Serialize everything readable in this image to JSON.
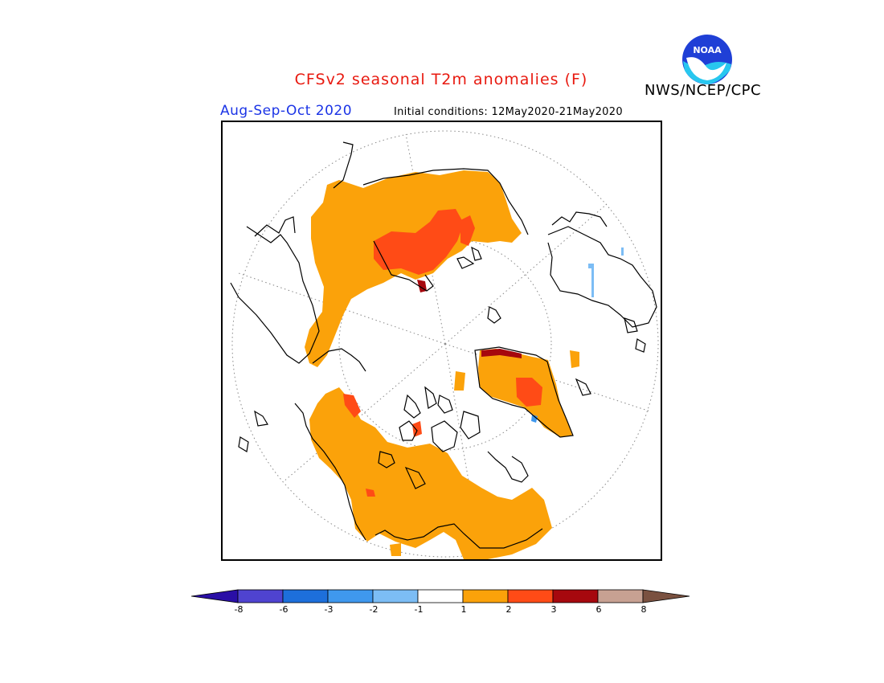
{
  "header": {
    "title": "CFSv2 seasonal T2m anomalies (F)",
    "organization": "NWS/NCEP/CPC",
    "logo_text": "NOAA",
    "season": "Aug-Sep-Oct 2020",
    "initial_conditions": "Initial conditions: 12May2020-21May2020"
  },
  "colorbar": {
    "ticks": [
      "-8",
      "-6",
      "-3",
      "-2",
      "-1",
      "1",
      "2",
      "3",
      "6",
      "8"
    ],
    "colors": [
      "#2a0fa6",
      "#4f43d0",
      "#1d6fdb",
      "#3f98ee",
      "#7cbdf5",
      "#ffffff",
      "#fba20a",
      "#ff4b16",
      "#a6080e",
      "#c7a192",
      "#7a5140"
    ]
  },
  "map": {
    "projection": "north-polar-stereographic",
    "anomaly_colors": {
      "warm1": "#fba20a",
      "warm2": "#ff4b16",
      "warm3": "#a6080e",
      "cool1": "#7cbdf5",
      "cool2": "#3f98ee"
    }
  }
}
